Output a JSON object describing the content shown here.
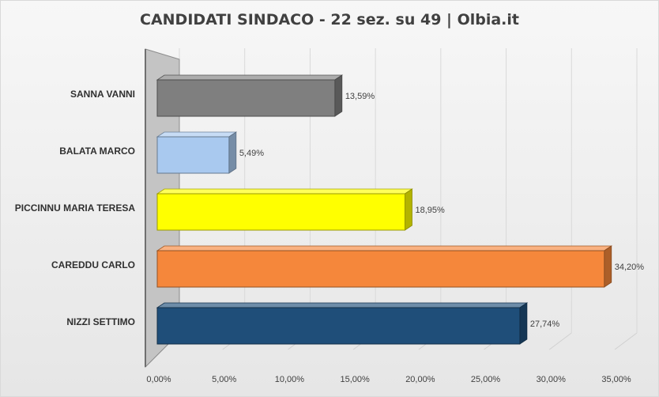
{
  "chart_data": {
    "type": "bar",
    "orientation": "horizontal",
    "style": "3d",
    "title": "CANDIDATI SINDACO - 22 sez. su 49 | Olbia.it",
    "categories": [
      "SANNA VANNI",
      "BALATA MARCO",
      "PICCINNU MARIA TERESA",
      "CAREDDU CARLO",
      "NIZZI SETTIMO"
    ],
    "values": [
      13.59,
      5.49,
      18.95,
      34.2,
      27.74
    ],
    "data_labels": [
      "13,59%",
      "5,49%",
      "18,95%",
      "34,20%",
      "27,74%"
    ],
    "colors": [
      "#7f7f7f",
      "#a9c9ef",
      "#ffff00",
      "#f5873b",
      "#1f4e79"
    ],
    "xlim": [
      0,
      35
    ],
    "xticks": [
      0,
      5,
      10,
      15,
      20,
      25,
      30,
      35
    ],
    "xtick_labels": [
      "0,00%",
      "5,00%",
      "10,00%",
      "15,00%",
      "20,00%",
      "25,00%",
      "30,00%",
      "35,00%"
    ],
    "grid": true,
    "legend": false,
    "xlabel": "",
    "ylabel": ""
  }
}
